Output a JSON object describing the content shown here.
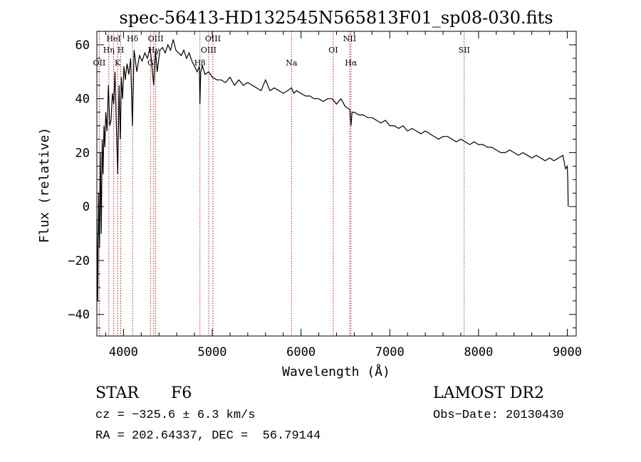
{
  "chart_data": {
    "type": "line",
    "title": "spec-56413-HD132545N565813F01_sp08-030.fits",
    "xlabel": "Wavelength (Å)",
    "ylabel": "Flux (relative)",
    "xlim": [
      3700,
      9100
    ],
    "ylim": [
      -48,
      65
    ],
    "xticks": [
      4000,
      5000,
      6000,
      7000,
      8000,
      9000
    ],
    "yticks": [
      -40,
      -20,
      0,
      20,
      40,
      60
    ],
    "grid": false,
    "line_color": "#000000",
    "marker_color": "#b22222",
    "lines": [
      {
        "label": "OII",
        "x": 3727
      },
      {
        "label": "Hη",
        "x": 3835
      },
      {
        "label": "HeI",
        "x": 3889
      },
      {
        "label": "K",
        "x": 3934
      },
      {
        "label": "H",
        "x": 3969
      },
      {
        "label": "Hδ",
        "x": 4102
      },
      {
        "label": "G",
        "x": 4305
      },
      {
        "label": "Hγ",
        "x": 4341
      },
      {
        "label": "OIII",
        "x": 4363
      },
      {
        "label": "Hβ",
        "x": 4861
      },
      {
        "label": "OIII",
        "x": 4959
      },
      {
        "label": "OIII",
        "x": 5007
      },
      {
        "label": "Na",
        "x": 5893
      },
      {
        "label": "OI",
        "x": 6363
      },
      {
        "label": "NII",
        "x": 6548
      },
      {
        "label": "Hα",
        "x": 6563
      },
      {
        "label": "SII",
        "x": 7838
      }
    ],
    "series": [
      {
        "x": [
          3700,
          3710,
          3720,
          3730,
          3740,
          3750,
          3760,
          3770,
          3780,
          3790,
          3800,
          3815,
          3830,
          3845,
          3860,
          3875,
          3890,
          3905,
          3920,
          3935,
          3950,
          3965,
          3975,
          3990,
          4005,
          4020,
          4040,
          4060,
          4080,
          4100,
          4120,
          4150,
          4180,
          4210,
          4240,
          4270,
          4300,
          4320,
          4340,
          4360,
          4380,
          4410,
          4440,
          4470,
          4500,
          4530,
          4560,
          4590,
          4620,
          4650,
          4680,
          4710,
          4740,
          4770,
          4800,
          4830,
          4855,
          4861,
          4870,
          4890,
          4920,
          4960,
          5000,
          5050,
          5100,
          5150,
          5200,
          5250,
          5300,
          5350,
          5400,
          5450,
          5500,
          5550,
          5600,
          5650,
          5700,
          5750,
          5800,
          5850,
          5893,
          5920,
          5950,
          6000,
          6050,
          6100,
          6150,
          6200,
          6250,
          6300,
          6350,
          6400,
          6450,
          6500,
          6550,
          6563,
          6575,
          6600,
          6650,
          6700,
          6750,
          6800,
          6850,
          6900,
          6950,
          7000,
          7050,
          7100,
          7150,
          7200,
          7250,
          7300,
          7350,
          7400,
          7450,
          7500,
          7550,
          7600,
          7650,
          7700,
          7750,
          7800,
          7850,
          7900,
          7950,
          8000,
          8050,
          8100,
          8150,
          8200,
          8250,
          8300,
          8350,
          8400,
          8450,
          8500,
          8550,
          8600,
          8650,
          8700,
          8750,
          8800,
          8850,
          8900,
          8950,
          8980,
          9000,
          9005,
          9010
        ],
        "values": [
          -5,
          -35,
          5,
          -15,
          20,
          -10,
          25,
          12,
          30,
          22,
          35,
          28,
          45,
          30,
          32,
          42,
          38,
          50,
          30,
          12,
          45,
          25,
          48,
          40,
          52,
          47,
          53,
          49,
          55,
          30,
          58,
          50,
          56,
          54,
          57,
          55,
          59,
          52,
          45,
          58,
          50,
          58,
          59,
          57,
          60,
          58,
          62,
          58,
          57,
          56,
          58,
          55,
          57,
          54,
          52,
          50,
          52,
          38,
          50,
          52,
          49,
          50,
          48,
          47,
          47,
          46,
          48,
          45,
          47,
          45,
          46,
          45,
          44,
          43,
          47,
          43,
          44,
          43,
          42,
          43,
          44,
          42,
          43,
          42,
          41,
          41,
          40,
          40,
          39,
          40,
          40,
          38,
          40,
          37,
          36,
          30,
          35,
          35,
          34,
          34,
          33,
          33,
          32,
          31,
          32,
          30,
          30,
          29,
          30,
          28,
          29,
          28,
          27,
          28,
          27,
          26,
          25,
          26,
          26,
          25,
          24,
          25,
          24,
          23,
          24,
          23,
          23,
          22,
          22,
          21,
          20,
          20,
          21,
          20,
          19,
          20,
          19,
          18,
          19,
          18,
          17,
          18,
          17,
          18,
          19,
          14,
          15,
          10,
          0
        ]
      }
    ]
  },
  "info": {
    "object": "STAR",
    "subclass": "F6",
    "survey": "LAMOST DR2",
    "cz": "cz = −325.6 ± 6.3 km/s",
    "obs_date": "Obs−Date: 20130430",
    "coords": "RA = 202.64337, DEC =  56.79144"
  }
}
